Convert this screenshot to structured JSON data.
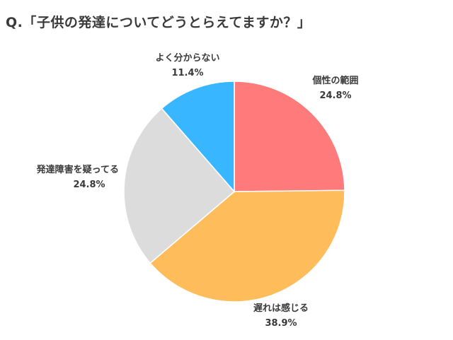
{
  "chart_data": {
    "type": "pie",
    "title": "Q.「子供の発達についてどうとらえてますか？」",
    "start_angle": "12 o'clock",
    "direction": "clockwise",
    "slices": [
      {
        "label": "個性の範囲",
        "value": 24.8,
        "value_label": "24.8%",
        "color": "#FF7B7B"
      },
      {
        "label": "遅れは感じる",
        "value": 38.9,
        "value_label": "38.9%",
        "color": "#FFBC5A"
      },
      {
        "label": "発達障害を疑ってる",
        "value": 24.8,
        "value_label": "24.8%",
        "color": "#DCDCDC"
      },
      {
        "label": "よく分からない",
        "value": 11.4,
        "value_label": "11.4%",
        "color": "#38B6FF"
      }
    ]
  }
}
